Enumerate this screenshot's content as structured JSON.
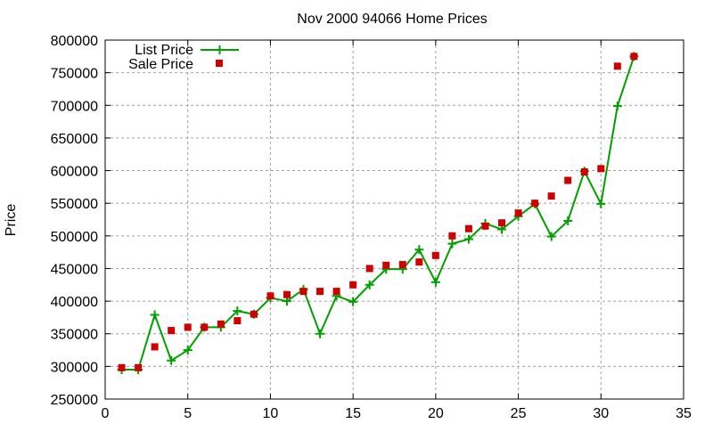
{
  "chart_data": {
    "type": "line",
    "title": "Nov 2000 94066 Home Prices",
    "xlabel": "",
    "ylabel": "Price",
    "xlim": [
      0,
      35
    ],
    "ylim": [
      250000,
      800000
    ],
    "xticks": [
      0,
      5,
      10,
      15,
      20,
      25,
      30,
      35
    ],
    "yticks": [
      250000,
      300000,
      350000,
      400000,
      450000,
      500000,
      550000,
      600000,
      650000,
      700000,
      750000,
      800000
    ],
    "grid": true,
    "legend_position": "top-left",
    "x": [
      1,
      2,
      3,
      4,
      5,
      6,
      7,
      8,
      9,
      10,
      11,
      12,
      13,
      14,
      15,
      16,
      17,
      18,
      19,
      20,
      21,
      22,
      23,
      24,
      25,
      26,
      27,
      28,
      29,
      30,
      31,
      32
    ],
    "series": [
      {
        "name": "List Price",
        "style": "linespoints",
        "color": "#00a000",
        "values": [
          295000,
          295000,
          379000,
          309000,
          325000,
          360000,
          360000,
          385000,
          380000,
          405000,
          400000,
          418000,
          350000,
          408000,
          399000,
          425000,
          449000,
          449000,
          479000,
          429000,
          488000,
          495000,
          519000,
          510000,
          530000,
          549000,
          499000,
          523000,
          599000,
          549000,
          699000,
          775000
        ]
      },
      {
        "name": "Sale Price",
        "style": "points",
        "color": "#d00000",
        "values": [
          298000,
          298000,
          330000,
          355000,
          360000,
          360000,
          365000,
          370000,
          380000,
          408000,
          410000,
          415000,
          415000,
          415000,
          425000,
          450000,
          455000,
          456000,
          460000,
          470000,
          500000,
          511000,
          515000,
          520000,
          535000,
          550000,
          561000,
          585000,
          598000,
          603000,
          760000,
          775000
        ]
      }
    ]
  }
}
